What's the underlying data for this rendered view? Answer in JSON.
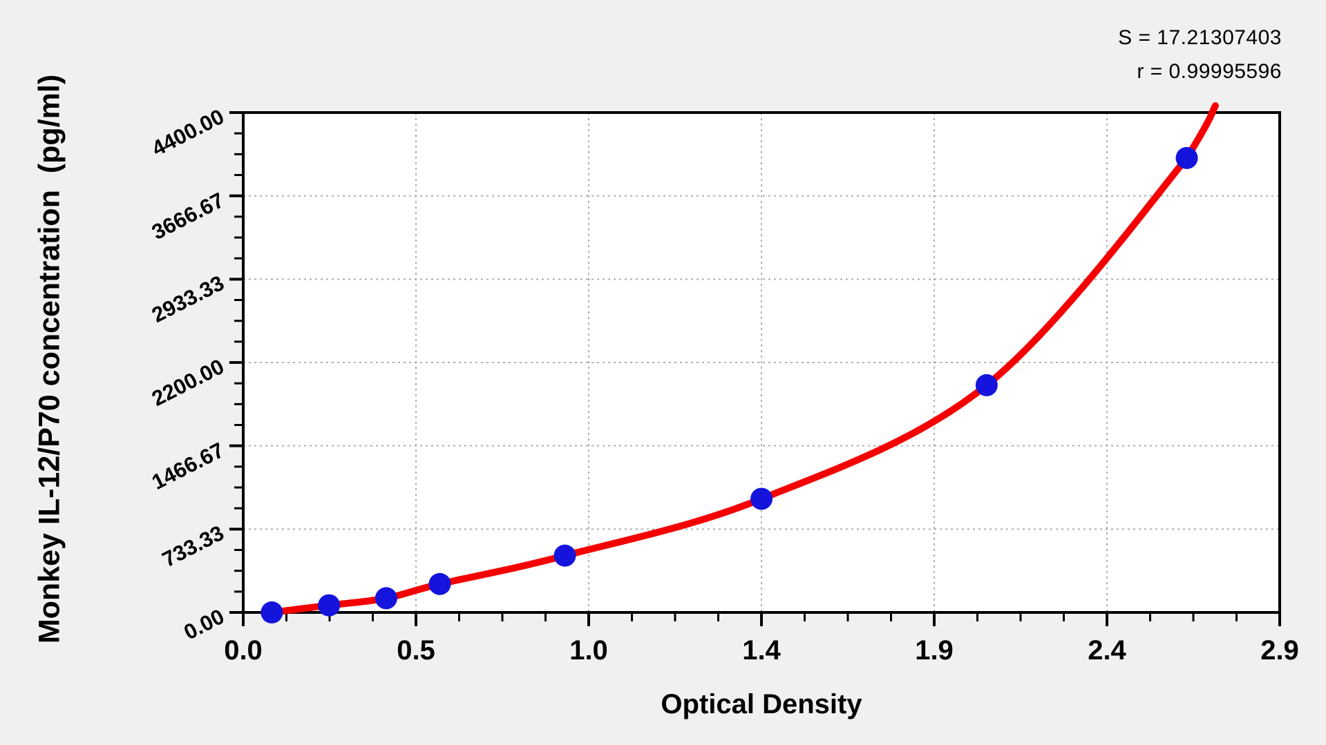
{
  "chart_data": {
    "type": "scatter",
    "title": "",
    "xlabel": "Optical Density",
    "ylabel": "Monkey IL-12/P70 concentration  (pg/ml)",
    "xlim": [
      0,
      2.9
    ],
    "ylim": [
      0,
      4400
    ],
    "x_tick_labels": [
      "0.0",
      "0.5",
      "1.0",
      "1.4",
      "1.9",
      "2.4",
      "2.9"
    ],
    "y_tick_labels": [
      "0.00",
      "733.33",
      "1466.67",
      "2200.00",
      "2933.33",
      "3666.67",
      "4400.00"
    ],
    "major_intervals": 6,
    "minor_divisions_per_interval": 4,
    "grid": true,
    "legend": "none",
    "annotations": [
      "S = 17.21307403",
      "r = 0.99995596"
    ],
    "series": [
      {
        "name": "standard-points",
        "type": "scatter",
        "points": [
          [
            0.08,
            0
          ],
          [
            0.24,
            62.5
          ],
          [
            0.4,
            125
          ],
          [
            0.55,
            250
          ],
          [
            0.9,
            500
          ],
          [
            1.45,
            1000
          ],
          [
            2.08,
            2000
          ],
          [
            2.64,
            4000
          ]
        ]
      },
      {
        "name": "fitted-curve",
        "type": "line",
        "points": [
          [
            0.071,
            -12
          ],
          [
            0.08,
            0
          ],
          [
            0.24,
            62.5
          ],
          [
            0.4,
            125
          ],
          [
            0.55,
            250
          ],
          [
            0.9,
            500
          ],
          [
            1.45,
            1000
          ],
          [
            2.08,
            2000
          ],
          [
            2.64,
            4000
          ],
          [
            2.72,
            4460
          ]
        ]
      }
    ],
    "colors": {
      "curve": "#f40000",
      "points": "#1414dd",
      "grid": "#aeaeae",
      "axis": "#000000",
      "plot_background": "#ffffff",
      "page_background": "#f0f0f0"
    }
  }
}
